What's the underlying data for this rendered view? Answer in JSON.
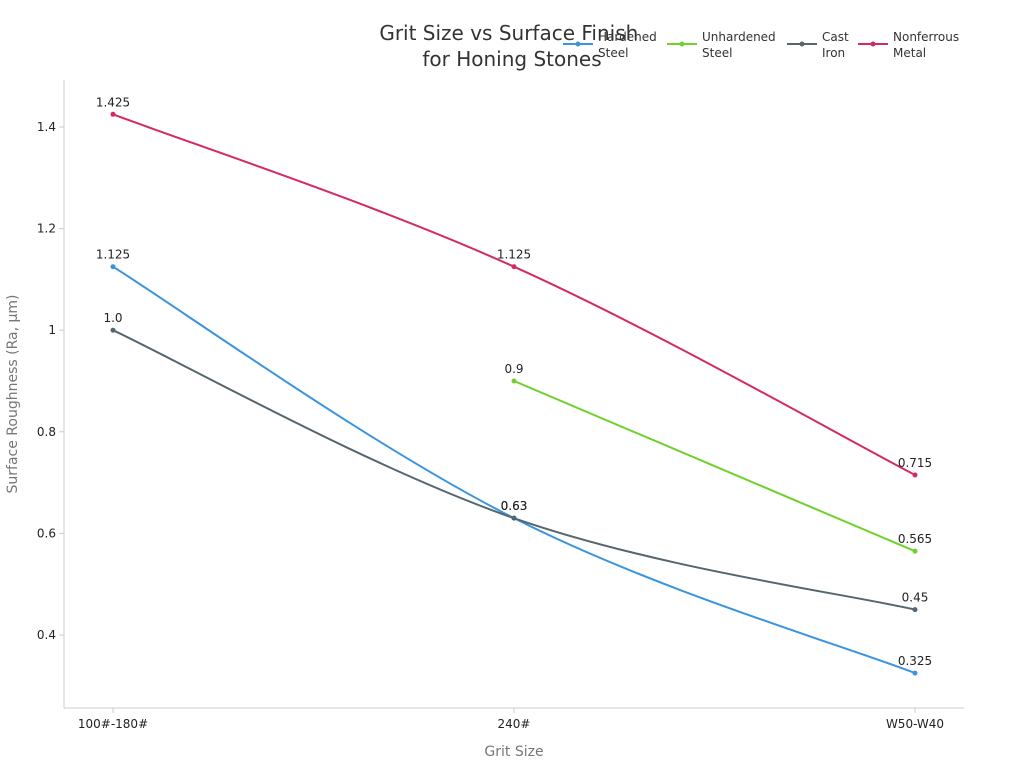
{
  "chart_data": {
    "type": "line",
    "title": [
      "Grit Size vs Surface Finish",
      "for Honing Stones"
    ],
    "xlabel": "Grit Size",
    "ylabel": "Surface Roughness (Ra, μm)",
    "categories": [
      "100#-180#",
      "240#",
      "W50-W40"
    ],
    "ylim": [
      0.25,
      1.49
    ],
    "yticks": [
      0.4,
      0.6,
      0.8,
      1,
      1.2,
      1.4
    ],
    "ytick_labels": [
      "0.4",
      "0.6",
      "0.8",
      "1",
      "1.2",
      "1.4"
    ],
    "grid": false,
    "legend_position": "top-right",
    "series": [
      {
        "name": [
          "Hardened",
          "Steel"
        ],
        "color": "#3a94e0",
        "values": [
          1.125,
          0.63,
          0.325
        ],
        "labels": [
          "1.125",
          "0.63",
          "0.325"
        ]
      },
      {
        "name": [
          "Unhardened",
          "Steel"
        ],
        "color": "#6ed12e",
        "values": [
          null,
          0.9,
          0.565
        ],
        "labels": [
          "",
          "0.9",
          "0.565"
        ]
      },
      {
        "name": [
          "Cast",
          "Iron"
        ],
        "color": "#56666f",
        "values": [
          1.0,
          0.63,
          0.45
        ],
        "labels": [
          "1.0",
          "0.63",
          "0.45"
        ]
      },
      {
        "name": [
          "Nonferrous",
          "Metal"
        ],
        "color": "#d42a63",
        "values": [
          1.425,
          1.125,
          0.715
        ],
        "labels": [
          "1.425",
          "1.125",
          "0.715"
        ]
      }
    ]
  }
}
